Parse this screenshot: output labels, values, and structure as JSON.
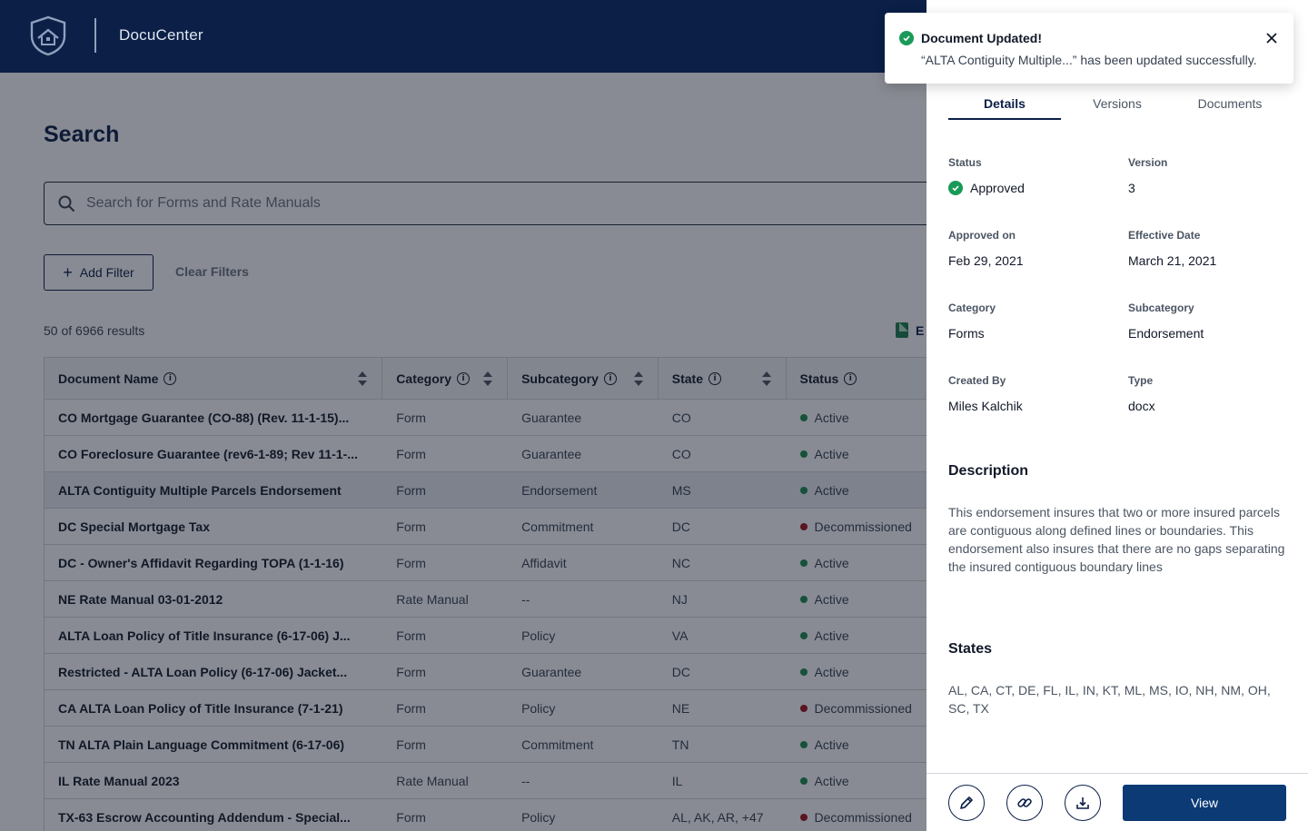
{
  "header": {
    "app_title": "DocuCenter"
  },
  "search_page": {
    "title": "Search",
    "search_placeholder": "Search for Forms and Rate Manuals",
    "add_filter_label": "Add Filter",
    "clear_filters_label": "Clear Filters",
    "results_count": "50 of 6966 results",
    "export_label": "E"
  },
  "table": {
    "columns": [
      "Document Name",
      "Category",
      "Subcategory",
      "State",
      "Status"
    ],
    "rows": [
      {
        "name": "CO Mortgage Guarantee (CO-88) (Rev. 11-1-15)...",
        "category": "Form",
        "subcategory": "Guarantee",
        "state": "CO",
        "status": "Active"
      },
      {
        "name": "CO Foreclosure Guarantee (rev6-1-89; Rev 11-1-...",
        "category": "Form",
        "subcategory": "Guarantee",
        "state": "CO",
        "status": "Active"
      },
      {
        "name": "ALTA Contiguity Multiple Parcels Endorsement",
        "category": "Form",
        "subcategory": "Endorsement",
        "state": "MS",
        "status": "Active"
      },
      {
        "name": "DC Special Mortgage Tax",
        "category": "Form",
        "subcategory": "Commitment",
        "state": "DC",
        "status": "Decommissioned"
      },
      {
        "name": "DC - Owner's Affidavit Regarding TOPA (1-1-16)",
        "category": "Form",
        "subcategory": "Affidavit",
        "state": "NC",
        "status": "Active"
      },
      {
        "name": "NE Rate Manual 03-01-2012",
        "category": "Rate Manual",
        "subcategory": "--",
        "state": "NJ",
        "status": "Active"
      },
      {
        "name": "ALTA Loan Policy of Title Insurance (6-17-06) J...",
        "category": "Form",
        "subcategory": "Policy",
        "state": "VA",
        "status": "Active"
      },
      {
        "name": "Restricted - ALTA Loan Policy (6-17-06) Jacket...",
        "category": "Form",
        "subcategory": "Guarantee",
        "state": "DC",
        "status": "Active"
      },
      {
        "name": "CA ALTA Loan Policy of Title Insurance (7-1-21)",
        "category": "Form",
        "subcategory": "Policy",
        "state": "NE",
        "status": "Decommissioned"
      },
      {
        "name": "TN ALTA Plain Language Commitment (6-17-06)",
        "category": "Form",
        "subcategory": "Commitment",
        "state": "TN",
        "status": "Active"
      },
      {
        "name": "IL Rate Manual 2023",
        "category": "Rate Manual",
        "subcategory": "--",
        "state": "IL",
        "status": "Active"
      },
      {
        "name": "TX-63 Escrow Accounting Addendum - Special...",
        "category": "Form",
        "subcategory": "Policy",
        "state": "AL, AK, AR, +47",
        "status": "Decommissioned"
      }
    ]
  },
  "panel": {
    "tabs": [
      "Details",
      "Versions",
      "Documents"
    ],
    "active_tab": "Details",
    "status_label": "Status",
    "status_value": "Approved",
    "version_label": "Version",
    "version_value": "3",
    "approved_on_label": "Approved on",
    "approved_on_value": "Feb 29, 2021",
    "effective_date_label": "Effective Date",
    "effective_date_value": "March 21, 2021",
    "category_label": "Category",
    "category_value": "Forms",
    "subcategory_label": "Subcategory",
    "subcategory_value": "Endorsement",
    "created_by_label": "Created By",
    "created_by_value": "Miles Kalchik",
    "type_label": "Type",
    "type_value": "docx",
    "description_title": "Description",
    "description_text": "This endorsement insures that two or more insured parcels are contiguous along defined lines or boundaries. This endorsement also insures that there are no gaps separating the insured contiguous boundary lines",
    "states_title": "States",
    "states_text": "AL, CA, CT, DE, FL, IL, IN, KT, ML, MS, IO, NH, NM, OH, SC, TX",
    "view_label": "View"
  },
  "toast": {
    "title": "Document Updated!",
    "message": "“ALTA Contiguity Multiple...” has been updated successfully."
  },
  "colors": {
    "header_bg": "#0b1f47",
    "primary": "#0b3a75",
    "active_status": "#1a8a4a",
    "decommissioned_status": "#a1121a",
    "success": "#1a9a58"
  }
}
